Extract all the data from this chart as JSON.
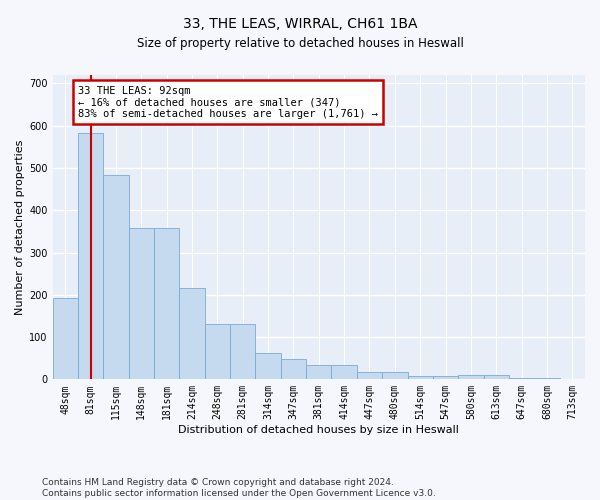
{
  "title": "33, THE LEAS, WIRRAL, CH61 1BA",
  "subtitle": "Size of property relative to detached houses in Heswall",
  "xlabel": "Distribution of detached houses by size in Heswall",
  "ylabel": "Number of detached properties",
  "bar_color": "#c5d9ef",
  "bar_edge_color": "#7aaad4",
  "fig_background": "#f5f7fc",
  "ax_background": "#e8eef8",
  "grid_color": "#ffffff",
  "categories": [
    "48sqm",
    "81sqm",
    "115sqm",
    "148sqm",
    "181sqm",
    "214sqm",
    "248sqm",
    "281sqm",
    "314sqm",
    "347sqm",
    "381sqm",
    "414sqm",
    "447sqm",
    "480sqm",
    "514sqm",
    "547sqm",
    "580sqm",
    "613sqm",
    "647sqm",
    "680sqm",
    "713sqm"
  ],
  "values": [
    193,
    583,
    483,
    357,
    357,
    215,
    130,
    130,
    63,
    48,
    35,
    35,
    18,
    18,
    7,
    7,
    10,
    10,
    3,
    3,
    0
  ],
  "vline_x_index": 1,
  "vline_color": "#cc0000",
  "annotation_text": "33 THE LEAS: 92sqm\n← 16% of detached houses are smaller (347)\n83% of semi-detached houses are larger (1,761) →",
  "ann_box_facecolor": "#ffffff",
  "ann_box_edgecolor": "#cc0000",
  "ylim": [
    0,
    720
  ],
  "yticks": [
    0,
    100,
    200,
    300,
    400,
    500,
    600,
    700
  ],
  "title_fontsize": 10,
  "subtitle_fontsize": 8.5,
  "xlabel_fontsize": 8,
  "ylabel_fontsize": 8,
  "tick_fontsize": 7,
  "footer": "Contains HM Land Registry data © Crown copyright and database right 2024.\nContains public sector information licensed under the Open Government Licence v3.0.",
  "footer_fontsize": 6.5
}
